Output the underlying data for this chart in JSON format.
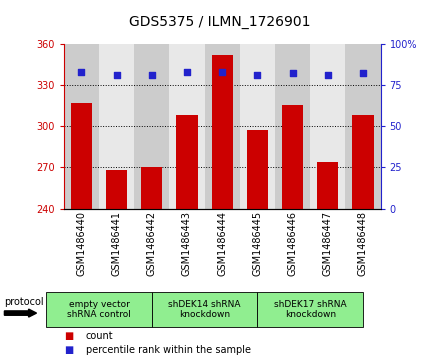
{
  "title": "GDS5375 / ILMN_1726901",
  "samples": [
    "GSM1486440",
    "GSM1486441",
    "GSM1486442",
    "GSM1486443",
    "GSM1486444",
    "GSM1486445",
    "GSM1486446",
    "GSM1486447",
    "GSM1486448"
  ],
  "counts": [
    317,
    268,
    270,
    308,
    352,
    297,
    315,
    274,
    308
  ],
  "percentiles": [
    83,
    81,
    81,
    83,
    83,
    81,
    82,
    81,
    82
  ],
  "ylim_left": [
    240,
    360
  ],
  "ylim_right": [
    0,
    100
  ],
  "yticks_left": [
    240,
    270,
    300,
    330,
    360
  ],
  "yticks_right": [
    0,
    25,
    50,
    75,
    100
  ],
  "bar_color": "#cc0000",
  "dot_color": "#2222cc",
  "col_colors": [
    "#cccccc",
    "#e8e8e8"
  ],
  "grid_yticks": [
    270,
    300,
    330
  ],
  "protocol_groups": [
    {
      "label": "empty vector\nshRNA control",
      "indices": [
        0,
        1,
        2
      ],
      "color": "#90ee90"
    },
    {
      "label": "shDEK14 shRNA\nknockdown",
      "indices": [
        3,
        4,
        5
      ],
      "color": "#90ee90"
    },
    {
      "label": "shDEK17 shRNA\nknockdown",
      "indices": [
        6,
        7,
        8
      ],
      "color": "#90ee90"
    }
  ],
  "legend_count_label": "count",
  "legend_percentile_label": "percentile rank within the sample",
  "protocol_label": "protocol",
  "title_fontsize": 10,
  "tick_fontsize": 7,
  "legend_fontsize": 7
}
